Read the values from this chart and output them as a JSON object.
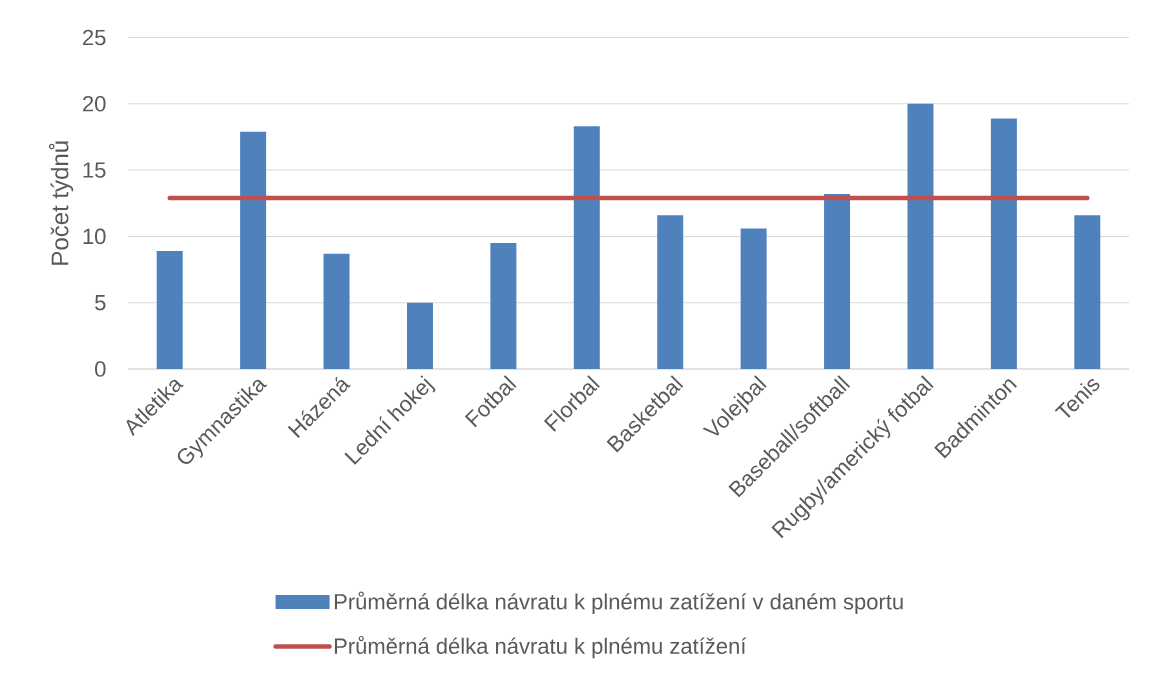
{
  "chart_data": {
    "type": "bar",
    "ylabel": "Počet týdnů",
    "categories": [
      "Atletika",
      "Gymnastika",
      "Házená",
      "Lední hokej",
      "Fotbal",
      "Florbal",
      "Basketbal",
      "Volejbal",
      "Baseball/softball",
      "Rugby/americký fotbal",
      "Badminton",
      "Tenis"
    ],
    "series": [
      {
        "name": "Průměrná délka návratu k plnému zatížení v daném sportu",
        "color": "#4f81bd",
        "values": [
          8.9,
          17.9,
          8.7,
          5.0,
          9.5,
          18.3,
          11.6,
          10.6,
          13.2,
          20.0,
          18.9,
          11.6
        ]
      },
      {
        "name": "Průměrná délka návratu k plnému zatížení",
        "type": "line",
        "color": "#c0504d",
        "values": [
          12.9,
          12.9,
          12.9,
          12.9,
          12.9,
          12.9,
          12.9,
          12.9,
          12.9,
          12.9,
          12.9,
          12.9
        ]
      }
    ],
    "ylim": [
      0,
      25
    ],
    "yticks": [
      0,
      5,
      10,
      15,
      20,
      25
    ],
    "grid": "y",
    "legend": "bottom"
  }
}
